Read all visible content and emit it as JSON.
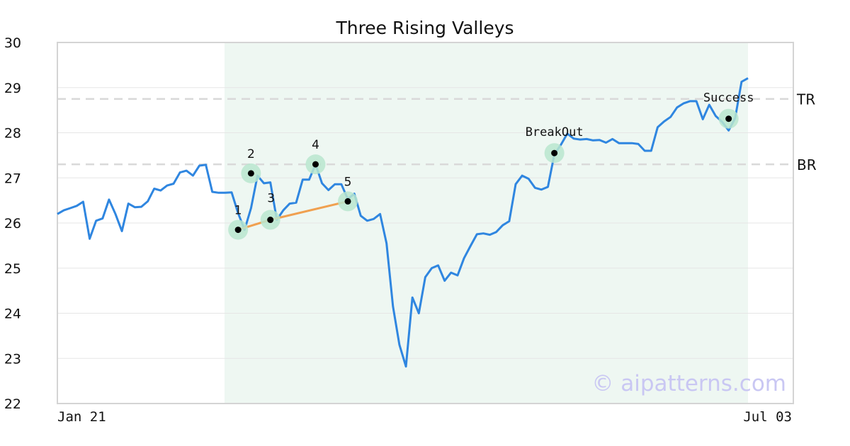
{
  "chart_data": {
    "type": "line",
    "title": "Three Rising Valleys",
    "xlabel": "",
    "ylabel": "",
    "ylim": [
      22,
      30
    ],
    "y_ticks": [
      22,
      23,
      24,
      25,
      26,
      27,
      28,
      29,
      30
    ],
    "x_tick_labels": [
      "Jan 21",
      "Jul 03"
    ],
    "grid": "horizontal",
    "highlight_range": [
      26,
      133
    ],
    "series": [
      {
        "color": "#2f86e0",
        "values": [
          26.2,
          26.28,
          26.33,
          26.38,
          26.47,
          25.65,
          26.05,
          26.1,
          26.52,
          26.2,
          25.82,
          26.43,
          26.35,
          26.36,
          26.48,
          26.76,
          26.72,
          26.83,
          26.87,
          27.12,
          27.16,
          27.05,
          27.27,
          27.29,
          26.69,
          26.67,
          26.67,
          26.68,
          26.22,
          25.85,
          26.33,
          27.05,
          26.88,
          26.9,
          26.07,
          26.28,
          26.43,
          26.45,
          26.96,
          26.96,
          27.3,
          26.88,
          26.73,
          26.86,
          26.86,
          26.53,
          26.65,
          26.16,
          26.05,
          26.09,
          26.2,
          25.55,
          24.15,
          23.3,
          22.82,
          24.35,
          24.0,
          24.8,
          25.0,
          25.06,
          24.72,
          24.9,
          24.84,
          25.22,
          25.49,
          25.75,
          25.77,
          25.74,
          25.8,
          25.95,
          26.04,
          26.86,
          27.05,
          26.98,
          26.78,
          26.74,
          26.8,
          27.52,
          27.73,
          27.98,
          27.87,
          27.85,
          27.86,
          27.83,
          27.84,
          27.78,
          27.86,
          27.77,
          27.77,
          27.77,
          27.75,
          27.6,
          27.6,
          28.12,
          28.25,
          28.35,
          28.56,
          28.65,
          28.7,
          28.7,
          28.3,
          28.62,
          28.37,
          28.24,
          28.05,
          28.32,
          29.13,
          29.21
        ]
      },
      {
        "color": "#f0a050",
        "x_indices": [
          28,
          33,
          45
        ],
        "values": [
          25.85,
          26.07,
          26.48
        ]
      }
    ],
    "reference_lines": [
      {
        "label": "TR",
        "value": 28.75
      },
      {
        "label": "BR",
        "value": 27.3
      }
    ],
    "points": [
      {
        "label": "1",
        "x_index": 28,
        "value": 25.85
      },
      {
        "label": "2",
        "x_index": 30,
        "value": 27.1
      },
      {
        "label": "3",
        "x_index": 33,
        "value": 26.07
      },
      {
        "label": "4",
        "x_index": 40,
        "value": 27.3
      },
      {
        "label": "5",
        "x_index": 45,
        "value": 26.48
      },
      {
        "label": "BreakOut",
        "x_index": 77,
        "value": 27.55
      },
      {
        "label": "Success",
        "x_index": 104,
        "value": 28.31
      }
    ],
    "watermark": "© aipatterns.com"
  }
}
